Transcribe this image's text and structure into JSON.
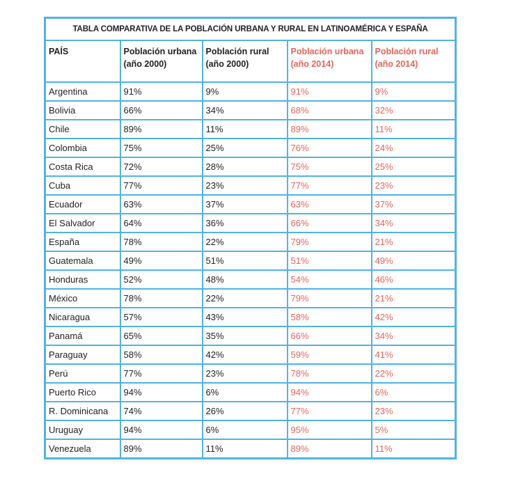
{
  "title": "TABLA COMPARATIVA DE LA POBLACIÓN URBANA Y RURAL EN LATINOAMÉRICA Y ESPAÑA",
  "headers": {
    "country": "PAÍS",
    "urban_2000": [
      "Población urbana",
      "(año 2000)"
    ],
    "rural_2000": [
      "Población rural",
      "(año 2000)"
    ],
    "urban_2014": [
      "Población urbana",
      "(año 2014)"
    ],
    "rural_2014": [
      "Población rural",
      "(año 2014)"
    ]
  },
  "colors": {
    "border": "#4fb3e8",
    "highlight": "#e8645a"
  },
  "rows": [
    {
      "country": "Argentina",
      "u2000": "91%",
      "r2000": "9%",
      "u2014": "91%",
      "r2014": "9%"
    },
    {
      "country": "Bolivia",
      "u2000": "66%",
      "r2000": "34%",
      "u2014": "68%",
      "r2014": "32%"
    },
    {
      "country": "Chile",
      "u2000": "89%",
      "r2000": "11%",
      "u2014": "89%",
      "r2014": "11%"
    },
    {
      "country": "Colombia",
      "u2000": "75%",
      "r2000": "25%",
      "u2014": "76%",
      "r2014": "24%"
    },
    {
      "country": "Costa Rica",
      "u2000": "72%",
      "r2000": "28%",
      "u2014": "75%",
      "r2014": "25%"
    },
    {
      "country": "Cuba",
      "u2000": "77%",
      "r2000": "23%",
      "u2014": "77%",
      "r2014": "23%"
    },
    {
      "country": "Ecuador",
      "u2000": "63%",
      "r2000": "37%",
      "u2014": "63%",
      "r2014": "37%"
    },
    {
      "country": "El Salvador",
      "u2000": "64%",
      "r2000": "36%",
      "u2014": "66%",
      "r2014": "34%"
    },
    {
      "country": "España",
      "u2000": "78%",
      "r2000": "22%",
      "u2014": "79%",
      "r2014": "21%"
    },
    {
      "country": "Guatemala",
      "u2000": "49%",
      "r2000": "51%",
      "u2014": "51%",
      "r2014": "49%"
    },
    {
      "country": "Honduras",
      "u2000": "52%",
      "r2000": "48%",
      "u2014": "54%",
      "r2014": "46%"
    },
    {
      "country": "México",
      "u2000": "78%",
      "r2000": "22%",
      "u2014": "79%",
      "r2014": "21%"
    },
    {
      "country": "Nicaragua",
      "u2000": "57%",
      "r2000": "43%",
      "u2014": "58%",
      "r2014": "42%"
    },
    {
      "country": "Panamá",
      "u2000": "65%",
      "r2000": "35%",
      "u2014": "66%",
      "r2014": "34%"
    },
    {
      "country": "Paraguay",
      "u2000": "58%",
      "r2000": "42%",
      "u2014": "59%",
      "r2014": "41%"
    },
    {
      "country": "Perú",
      "u2000": "77%",
      "r2000": "23%",
      "u2014": "78%",
      "r2014": "22%"
    },
    {
      "country": "Puerto Rico",
      "u2000": "94%",
      "r2000": "6%",
      "u2014": "94%",
      "r2014": "6%"
    },
    {
      "country": "R. Dominicana",
      "u2000": "74%",
      "r2000": "26%",
      "u2014": "77%",
      "r2014": "23%"
    },
    {
      "country": "Uruguay",
      "u2000": "94%",
      "r2000": "6%",
      "u2014": "95%",
      "r2014": "5%"
    },
    {
      "country": "Venezuela",
      "u2000": "89%",
      "r2000": "11%",
      "u2014": "89%",
      "r2014": "11%"
    }
  ]
}
